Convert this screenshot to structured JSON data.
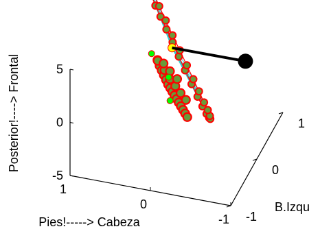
{
  "chart_data": {
    "type": "scatter",
    "projection": "3d",
    "title": "",
    "axes": {
      "x": {
        "label": "Pies!-----> Cabeza",
        "ticks": [
          1,
          0,
          -1
        ],
        "range": [
          1,
          -1
        ]
      },
      "y": {
        "label": "B.Izquierda",
        "label_visible": "B.Izqu",
        "ticks": [
          -1,
          0,
          1
        ],
        "range": [
          -1,
          1
        ]
      },
      "z": {
        "label": "Posterior!----> Frontal",
        "ticks": [
          5,
          0,
          -5
        ],
        "range": [
          -5,
          5
        ]
      }
    },
    "colors": {
      "outline": "#ff0000",
      "marker_fill": "#6a9a3a",
      "highlight_marker": "#00ff00",
      "spokes": "#33cccc",
      "rod": "#000000",
      "endpoint": "#000000",
      "center_marker": "#ffff00",
      "axis": "#000000"
    },
    "series": [
      {
        "kind": "ring",
        "description": "circle of markers connected to the center by spokes",
        "points": [
          [
            0.55,
            0.6,
            6.8
          ],
          [
            0.6,
            0.72,
            6.3
          ],
          [
            0.63,
            0.82,
            5.6
          ],
          [
            0.64,
            0.9,
            4.8
          ],
          [
            0.62,
            0.95,
            3.9
          ],
          [
            0.58,
            0.98,
            2.9
          ],
          [
            0.52,
            0.99,
            1.9
          ],
          [
            0.44,
            0.97,
            0.9
          ],
          [
            0.35,
            0.93,
            0.0
          ],
          [
            0.25,
            0.86,
            -0.9
          ],
          [
            0.14,
            0.76,
            -1.6
          ],
          [
            0.02,
            0.64,
            -2.2
          ],
          [
            -0.1,
            0.5,
            -2.6
          ],
          [
            -0.21,
            0.35,
            -2.7
          ],
          [
            -0.31,
            0.2,
            -2.6
          ],
          [
            -0.39,
            0.05,
            -2.2
          ],
          [
            -0.45,
            -0.09,
            -1.6
          ],
          [
            -0.48,
            -0.2,
            -0.8
          ],
          [
            -0.48,
            -0.28,
            0.1
          ],
          [
            -0.45,
            -0.33,
            1.0
          ],
          [
            -0.39,
            -0.34,
            2.0
          ],
          [
            -0.31,
            -0.31,
            2.9
          ],
          [
            -0.21,
            -0.25,
            3.8
          ],
          [
            -0.09,
            -0.15,
            4.6
          ],
          [
            0.04,
            -0.03,
            5.3
          ],
          [
            0.17,
            0.11,
            5.9
          ],
          [
            0.3,
            0.26,
            6.4
          ],
          [
            0.43,
            0.43,
            6.8
          ]
        ]
      },
      {
        "kind": "cluster",
        "description": "dense stack of markers near the center",
        "points": [
          [
            0.1,
            -0.42,
            4.6
          ],
          [
            0.08,
            -0.4,
            4.0
          ],
          [
            0.06,
            -0.38,
            3.5
          ],
          [
            0.04,
            -0.36,
            3.0
          ],
          [
            0.02,
            -0.34,
            2.5
          ],
          [
            0.0,
            -0.32,
            2.0
          ],
          [
            -0.02,
            -0.3,
            1.6
          ],
          [
            -0.04,
            -0.28,
            1.2
          ],
          [
            -0.06,
            -0.26,
            0.8
          ],
          [
            -0.08,
            -0.24,
            0.4
          ],
          [
            -0.1,
            -0.22,
            0.0
          ],
          [
            -0.12,
            -0.2,
            -0.4
          ],
          [
            -0.14,
            -0.18,
            -0.8
          ],
          [
            -0.16,
            -0.16,
            -1.2
          ],
          [
            -0.18,
            -0.14,
            -1.6
          ],
          [
            0.05,
            -0.3,
            3.2
          ],
          [
            0.0,
            -0.25,
            2.2
          ],
          [
            -0.05,
            -0.2,
            1.4
          ],
          [
            -0.1,
            -0.15,
            0.6
          ],
          [
            -0.15,
            -0.1,
            -0.2
          ],
          [
            0.12,
            -0.35,
            4.2
          ],
          [
            0.07,
            -0.28,
            3.7
          ],
          [
            0.01,
            -0.22,
            2.8
          ],
          [
            -0.06,
            -0.16,
            1.9
          ]
        ]
      },
      {
        "kind": "highlight",
        "description": "green markers",
        "points": [
          [
            0.18,
            -0.4,
            5.0
          ],
          [
            0.0,
            -0.3,
            2.6
          ],
          [
            -0.05,
            -0.4,
            0.9
          ]
        ]
      },
      {
        "kind": "center",
        "points": [
          [
            0.12,
            0.2,
            3.0
          ]
        ]
      },
      {
        "kind": "rod",
        "description": "thick segment from center to endpoint",
        "points": [
          [
            0.12,
            0.2,
            3.0
          ],
          [
            -0.55,
            0.95,
            -0.6
          ]
        ]
      },
      {
        "kind": "endpoint",
        "points": [
          [
            -0.55,
            0.95,
            -0.6
          ]
        ]
      }
    ]
  }
}
